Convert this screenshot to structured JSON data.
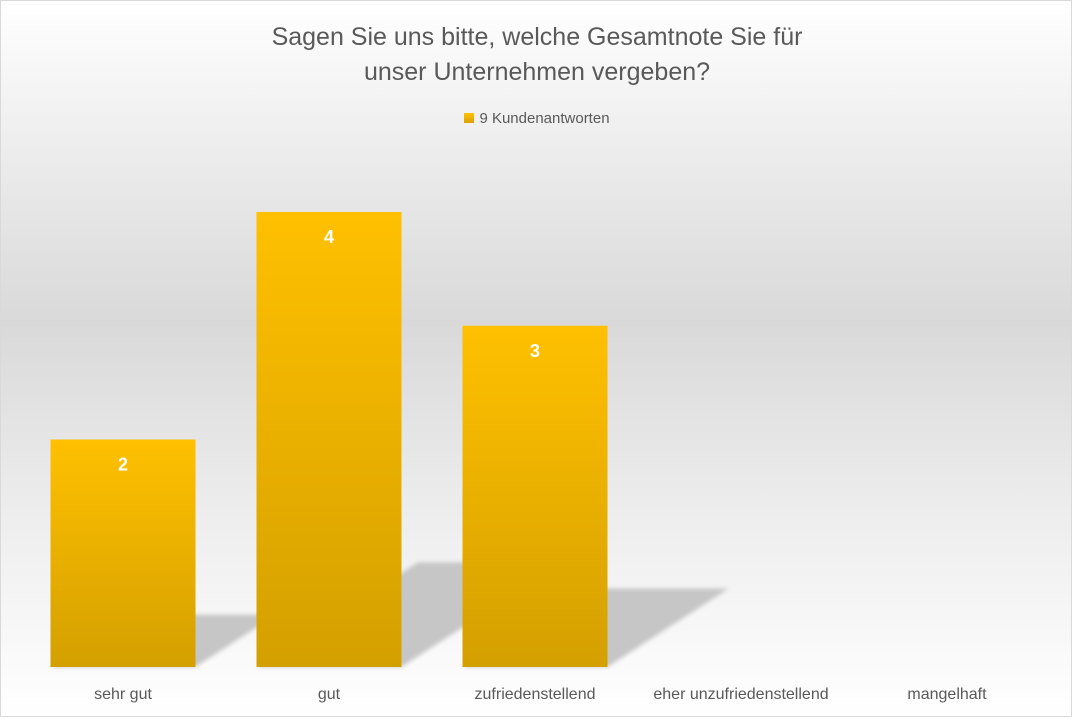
{
  "chart_data": {
    "type": "bar",
    "title_lines": [
      "Sagen Sie uns bitte, welche Gesamtnote Sie für",
      "unser Unternehmen vergeben?"
    ],
    "legend": [
      "9 Kundenantworten"
    ],
    "legend_position": "top",
    "categories": [
      "sehr gut",
      "gut",
      "zufriedenstellend",
      "eher unzufriedenstellend",
      "mangelhaft"
    ],
    "series": [
      {
        "name": "9 Kundenantworten",
        "values": [
          2,
          4,
          3,
          0,
          0
        ]
      }
    ],
    "data_labels": [
      "2",
      "4",
      "3",
      "",
      ""
    ],
    "ylim": [
      0,
      4
    ],
    "grid": false,
    "colors": {
      "bar_top": "#ffc000",
      "bar_bottom": "#d4a000",
      "shadow": "#c6c6c6",
      "label": "#ffffff",
      "text": "#595959"
    }
  }
}
